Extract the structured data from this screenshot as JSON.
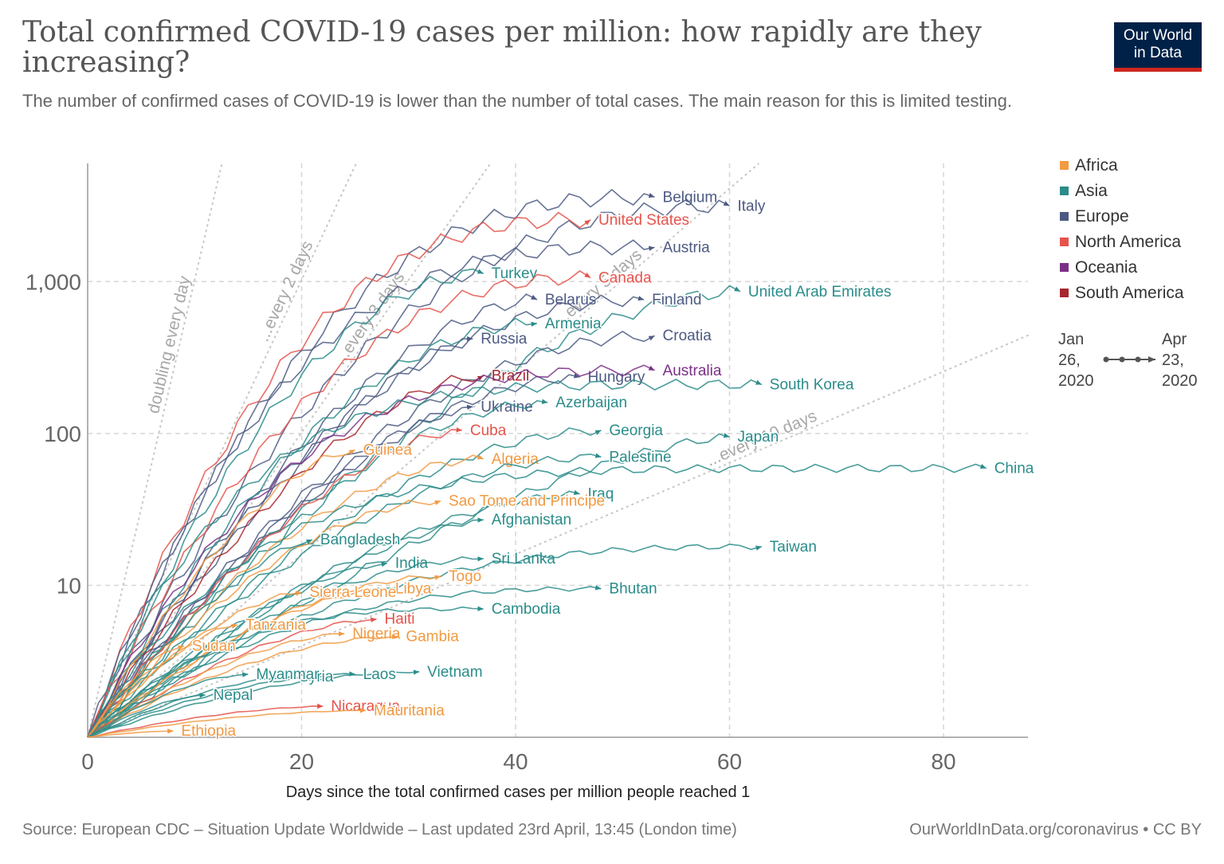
{
  "header": {
    "title": "Total confirmed COVID-19 cases per million: how rapidly are they increasing?",
    "subtitle": "The number of confirmed cases of COVID-19 is lower than the number of total cases. The main reason for this is limited testing.",
    "logo_line1": "Our World",
    "logo_line2": "in Data"
  },
  "footer": {
    "source": "Source: European CDC – Situation Update Worldwide – Last updated 23rd April, 13:45 (London time)",
    "license": "OurWorldInData.org/coronavirus • CC BY"
  },
  "chart_data": {
    "type": "line",
    "xlabel": "Days since the total confirmed cases per million people reached 1",
    "ylabel": "",
    "xlim": [
      0,
      88
    ],
    "ylim": [
      1,
      6000
    ],
    "y_scale": "log",
    "grid": true,
    "legend_position": "right",
    "x_ticks": [
      0,
      20,
      40,
      60,
      80
    ],
    "y_ticks": [
      {
        "value": 10,
        "label": "10"
      },
      {
        "value": 100,
        "label": "100"
      },
      {
        "value": 1000,
        "label": "1,000"
      }
    ],
    "colors": {
      "Africa": "#f19a42",
      "Asia": "#2a8c8a",
      "Europe": "#4c5a82",
      "North America": "#e5534b",
      "Oceania": "#7a2f86",
      "South America": "#a8262e"
    },
    "legend": [
      "Africa",
      "Asia",
      "Europe",
      "North America",
      "Oceania",
      "South America"
    ],
    "time_legend": {
      "start": "Jan 26, 2020",
      "end": "Apr 23, 2020"
    },
    "reference_lines": [
      {
        "label": "doubling every day",
        "doubling_days": 1
      },
      {
        "label": "...every 2 days",
        "doubling_days": 2
      },
      {
        "label": "...every 3 days",
        "doubling_days": 3
      },
      {
        "label": "...every 5 days",
        "doubling_days": 5
      },
      {
        "label": "...every 10 days",
        "doubling_days": 10
      }
    ],
    "series": [
      {
        "name": "Belgium",
        "region": "Europe",
        "days": 53,
        "final": 3600,
        "shape": 0.3
      },
      {
        "name": "Italy",
        "region": "Europe",
        "days": 60,
        "final": 3150,
        "shape": 0.35
      },
      {
        "name": "United States",
        "region": "North America",
        "days": 47,
        "final": 2550,
        "shape": 0.3
      },
      {
        "name": "Austria",
        "region": "Europe",
        "days": 53,
        "final": 1680,
        "shape": 0.25
      },
      {
        "name": "Turkey",
        "region": "Asia",
        "days": 37,
        "final": 1130,
        "shape": 0.45
      },
      {
        "name": "Canada",
        "region": "North America",
        "days": 47,
        "final": 1060,
        "shape": 0.35
      },
      {
        "name": "United Arab Emirates",
        "region": "Asia",
        "days": 61,
        "final": 860,
        "shape": 0.55
      },
      {
        "name": "Belarus",
        "region": "Europe",
        "days": 42,
        "final": 760,
        "shape": 0.55
      },
      {
        "name": "Finland",
        "region": "Europe",
        "days": 52,
        "final": 760,
        "shape": 0.4
      },
      {
        "name": "Armenia",
        "region": "Asia",
        "days": 42,
        "final": 530,
        "shape": 0.45
      },
      {
        "name": "Russia",
        "region": "Europe",
        "days": 36,
        "final": 420,
        "shape": 0.7
      },
      {
        "name": "Croatia",
        "region": "Europe",
        "days": 53,
        "final": 440,
        "shape": 0.45
      },
      {
        "name": "Hungary",
        "region": "Europe",
        "days": 46,
        "final": 235,
        "shape": 0.5
      },
      {
        "name": "Brazil",
        "region": "South America",
        "days": 37,
        "final": 240,
        "shape": 0.55
      },
      {
        "name": "Australia",
        "region": "Oceania",
        "days": 53,
        "final": 260,
        "shape": 0.25
      },
      {
        "name": "South Korea",
        "region": "Asia",
        "days": 63,
        "final": 210,
        "shape": 0.15
      },
      {
        "name": "Ukraine",
        "region": "Europe",
        "days": 36,
        "final": 150,
        "shape": 0.65
      },
      {
        "name": "Azerbaijan",
        "region": "Asia",
        "days": 43,
        "final": 160,
        "shape": 0.5
      },
      {
        "name": "Cuba",
        "region": "North America",
        "days": 35,
        "final": 105,
        "shape": 0.6
      },
      {
        "name": "Georgia",
        "region": "Asia",
        "days": 48,
        "final": 105,
        "shape": 0.5
      },
      {
        "name": "Japan",
        "region": "Asia",
        "days": 60,
        "final": 95,
        "shape": 0.7
      },
      {
        "name": "Guinea",
        "region": "Africa",
        "days": 25,
        "final": 78,
        "shape": 0.6
      },
      {
        "name": "Algeria",
        "region": "Africa",
        "days": 37,
        "final": 68,
        "shape": 0.5
      },
      {
        "name": "Palestine",
        "region": "Asia",
        "days": 48,
        "final": 70,
        "shape": 0.45
      },
      {
        "name": "China",
        "region": "Asia",
        "days": 84,
        "final": 59,
        "shape": 0.12
      },
      {
        "name": "Iraq",
        "region": "Asia",
        "days": 46,
        "final": 40,
        "shape": 0.55
      },
      {
        "name": "Sao Tome and Principe",
        "region": "Africa",
        "days": 33,
        "final": 36,
        "shape": 0.5
      },
      {
        "name": "Afghanistan",
        "region": "Asia",
        "days": 37,
        "final": 27,
        "shape": 0.7
      },
      {
        "name": "Bangladesh",
        "region": "Asia",
        "days": 21,
        "final": 20,
        "shape": 0.7
      },
      {
        "name": "India",
        "region": "Asia",
        "days": 28,
        "final": 14,
        "shape": 0.65
      },
      {
        "name": "Sri Lanka",
        "region": "Asia",
        "days": 37,
        "final": 15,
        "shape": 0.5
      },
      {
        "name": "Taiwan",
        "region": "Asia",
        "days": 63,
        "final": 18,
        "shape": 0.3
      },
      {
        "name": "Togo",
        "region": "Africa",
        "days": 33,
        "final": 11.5,
        "shape": 0.5
      },
      {
        "name": "Libya",
        "region": "Africa",
        "days": 28,
        "final": 9.5,
        "shape": 0.6
      },
      {
        "name": "Sierra Leone",
        "region": "Africa",
        "days": 20,
        "final": 9,
        "shape": 0.6
      },
      {
        "name": "Bhutan",
        "region": "Asia",
        "days": 48,
        "final": 9.5,
        "shape": 0.3
      },
      {
        "name": "Cambodia",
        "region": "Asia",
        "days": 37,
        "final": 7,
        "shape": 0.25
      },
      {
        "name": "Haiti",
        "region": "North America",
        "days": 27,
        "final": 6,
        "shape": 0.6
      },
      {
        "name": "Tanzania",
        "region": "Africa",
        "days": 14,
        "final": 5.5,
        "shape": 0.65
      },
      {
        "name": "Nigeria",
        "region": "Africa",
        "days": 24,
        "final": 4.8,
        "shape": 0.6
      },
      {
        "name": "Gambia",
        "region": "Africa",
        "days": 29,
        "final": 4.6,
        "shape": 0.5
      },
      {
        "name": "Sudan",
        "region": "Africa",
        "days": 9,
        "final": 4,
        "shape": 0.6
      },
      {
        "name": "Vietnam",
        "region": "Asia",
        "days": 31,
        "final": 2.7,
        "shape": 0.5
      },
      {
        "name": "Laos",
        "region": "Asia",
        "days": 25,
        "final": 2.6,
        "shape": 0.5
      },
      {
        "name": "Syria",
        "region": "Asia",
        "days": 19,
        "final": 2.5,
        "shape": 0.6
      },
      {
        "name": "Myanmar",
        "region": "Asia",
        "days": 15,
        "final": 2.6,
        "shape": 0.55
      },
      {
        "name": "Nepal",
        "region": "Asia",
        "days": 11,
        "final": 1.9,
        "shape": 0.6
      },
      {
        "name": "Nicaragua",
        "region": "North America",
        "days": 22,
        "final": 1.6,
        "shape": 0.6
      },
      {
        "name": "Mauritania",
        "region": "Africa",
        "days": 26,
        "final": 1.5,
        "shape": 0.5
      },
      {
        "name": "Ethiopia",
        "region": "Africa",
        "days": 8,
        "final": 1.1,
        "shape": 0.6
      }
    ]
  }
}
